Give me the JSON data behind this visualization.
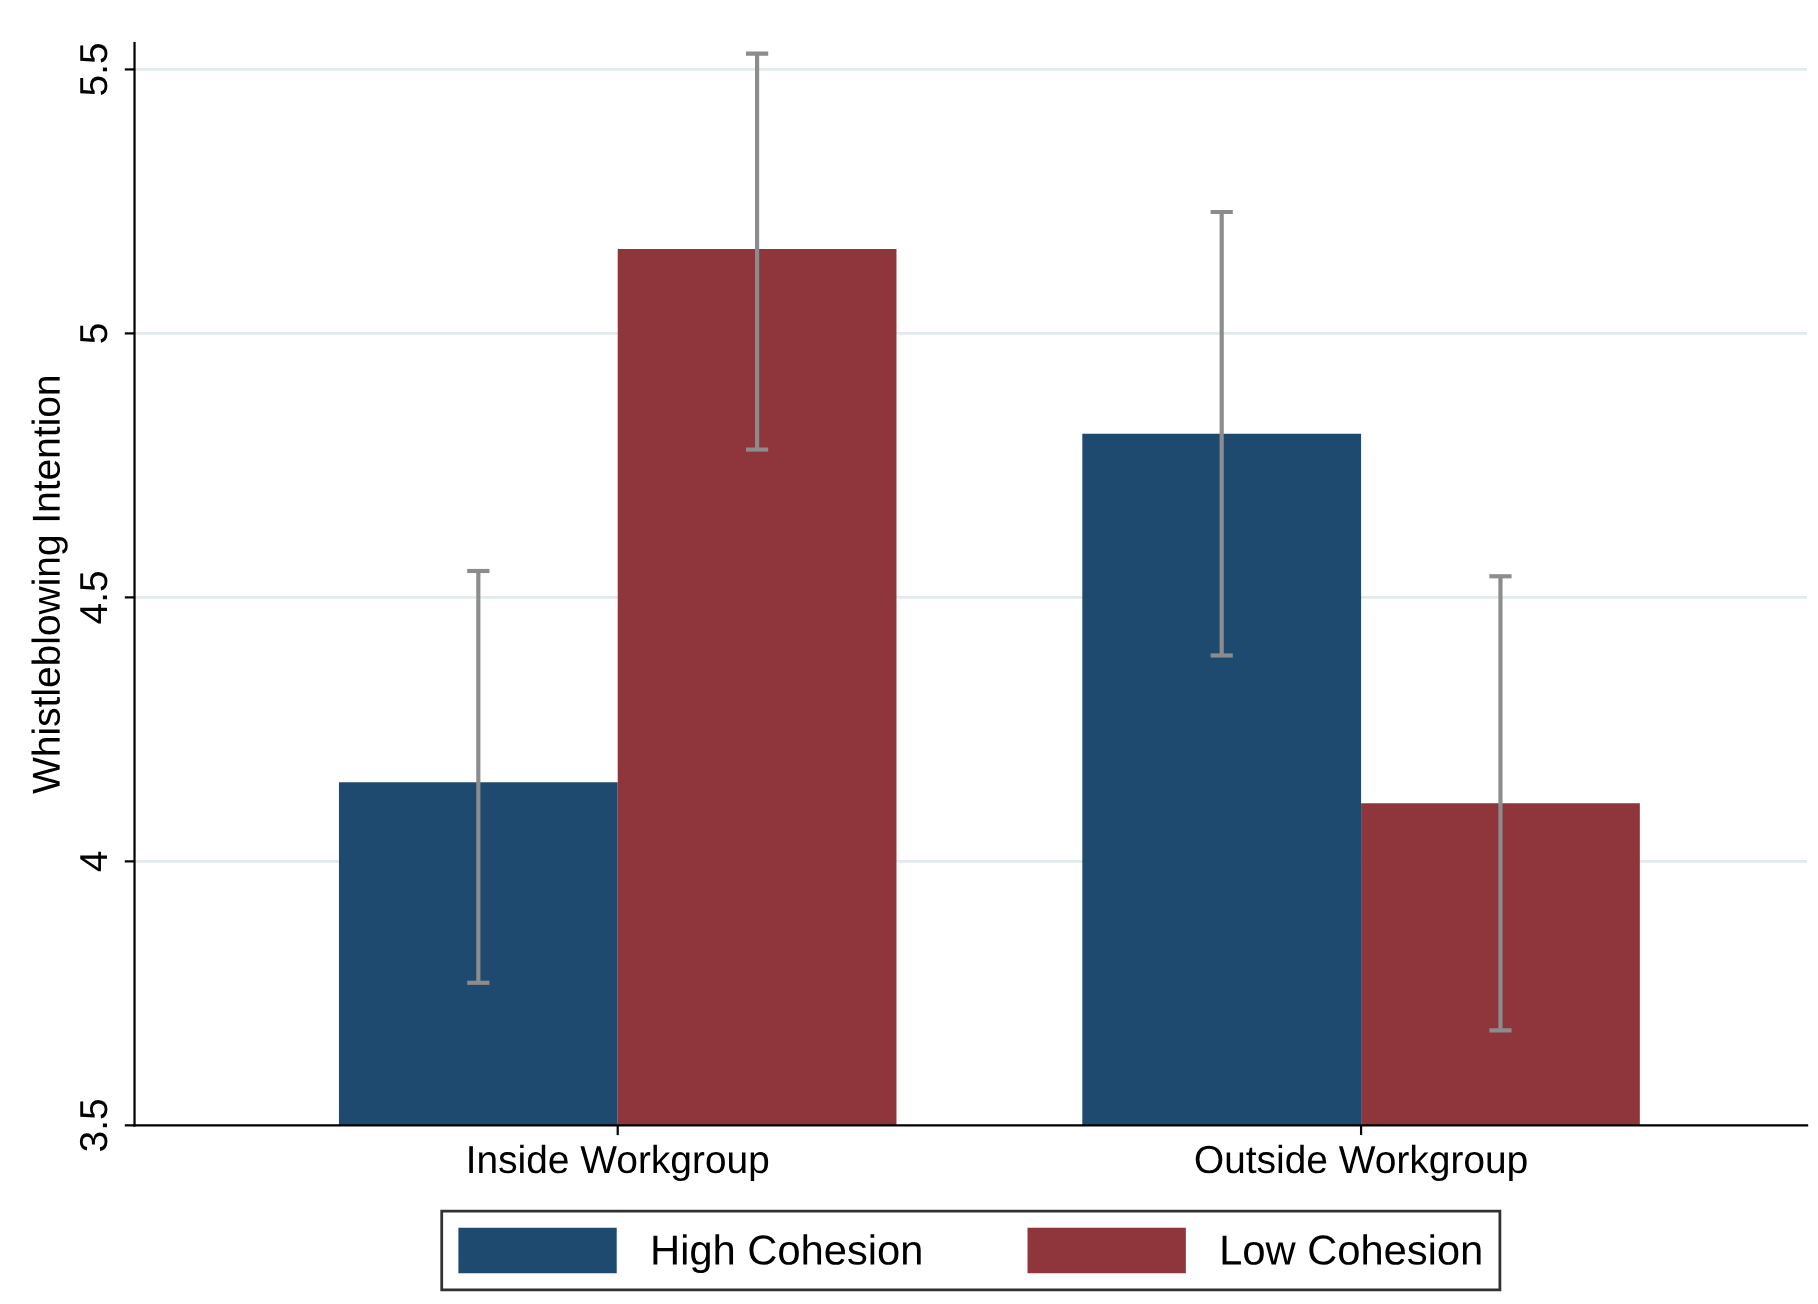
{
  "chart_data": {
    "type": "bar",
    "ylabel": "Whistleblowing Intention",
    "categories": [
      "Inside Workgroup",
      "Outside Workgroup"
    ],
    "series": [
      {
        "name": "High Cohesion",
        "color": "#1f4a70",
        "values": [
          4.15,
          4.81
        ],
        "errors": [
          [
            3.77,
            4.55
          ],
          [
            4.39,
            5.23
          ]
        ]
      },
      {
        "name": "Low Cohesion",
        "color": "#8f353c",
        "values": [
          5.16,
          4.11
        ],
        "errors": [
          [
            4.78,
            5.53
          ],
          [
            3.68,
            4.54
          ]
        ]
      }
    ],
    "ylim": [
      3.5,
      5.55
    ],
    "yticks": [
      3.5,
      4,
      4.5,
      5,
      5.5
    ],
    "grid": "y",
    "legend": "bottom"
  }
}
